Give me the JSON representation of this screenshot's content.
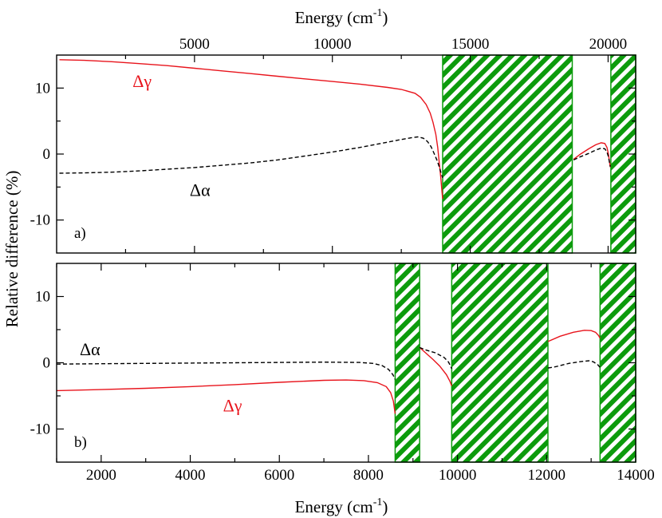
{
  "colors": {
    "gamma_line": "#e8141c",
    "alpha_line": "#000000",
    "band_fill": "#0c9b0c",
    "band_hatch": "#ffffff"
  },
  "figure": {
    "ylabel": "Relative difference (%)"
  },
  "chart_data": [
    {
      "type": "line",
      "panel_label": "a)",
      "xlabel": "Energy (cm",
      "xlabel_sup": "-1",
      "xlabel_close": ")",
      "xlabel_position": "top",
      "xlim": [
        0,
        21000
      ],
      "ylim": [
        -15,
        15
      ],
      "xticks": [
        5000,
        10000,
        15000,
        20000
      ],
      "xtick_labels": [
        "5000",
        "10000",
        "15000",
        "20000"
      ],
      "yticks": [
        -10,
        0,
        10
      ],
      "ytick_labels": [
        "-10",
        "0",
        "10"
      ],
      "shaded_regions": [
        [
          14000,
          18700
        ],
        [
          20100,
          21000
        ]
      ],
      "annotations": [
        {
          "text": "Δγ",
          "x": 3100,
          "y": 11,
          "color": "#e8141c"
        },
        {
          "text": "Δα",
          "x": 5200,
          "y": -5.5,
          "color": "#000000"
        }
      ],
      "series": [
        {
          "name": "Δγ",
          "style": "solid",
          "color": "#e8141c",
          "segments": [
            [
              [
                100,
                14.3
              ],
              [
                1000,
                14.2
              ],
              [
                2000,
                14.0
              ],
              [
                3000,
                13.7
              ],
              [
                4000,
                13.4
              ],
              [
                5000,
                13.0
              ],
              [
                6000,
                12.6
              ],
              [
                7000,
                12.2
              ],
              [
                8000,
                11.8
              ],
              [
                9000,
                11.4
              ],
              [
                10000,
                11.0
              ],
              [
                11000,
                10.6
              ],
              [
                12000,
                10.1
              ],
              [
                12500,
                9.8
              ],
              [
                13000,
                9.2
              ],
              [
                13200,
                8.6
              ],
              [
                13400,
                7.5
              ],
              [
                13550,
                6.2
              ],
              [
                13650,
                4.8
              ],
              [
                13750,
                3.0
              ],
              [
                13820,
                1.0
              ],
              [
                13880,
                -1.5
              ],
              [
                13930,
                -3.5
              ],
              [
                13970,
                -5.5
              ],
              [
                14000,
                -6.8
              ]
            ],
            [
              [
                18750,
                -0.8
              ],
              [
                19000,
                0.0
              ],
              [
                19300,
                0.8
              ],
              [
                19550,
                1.4
              ],
              [
                19750,
                1.7
              ],
              [
                19880,
                1.6
              ],
              [
                19960,
                1.0
              ],
              [
                20010,
                0.0
              ],
              [
                20050,
                -1.2
              ],
              [
                20080,
                -2.0
              ]
            ]
          ]
        },
        {
          "name": "Δα",
          "style": "dashed",
          "color": "#000000",
          "segments": [
            [
              [
                100,
                -2.9
              ],
              [
                1000,
                -2.85
              ],
              [
                2000,
                -2.75
              ],
              [
                3000,
                -2.55
              ],
              [
                4000,
                -2.3
              ],
              [
                5000,
                -2.05
              ],
              [
                6000,
                -1.7
              ],
              [
                7000,
                -1.35
              ],
              [
                8000,
                -0.9
              ],
              [
                9000,
                -0.3
              ],
              [
                10000,
                0.3
              ],
              [
                11000,
                1.0
              ],
              [
                12000,
                1.8
              ],
              [
                12500,
                2.2
              ],
              [
                12900,
                2.5
              ],
              [
                13100,
                2.6
              ],
              [
                13300,
                2.4
              ],
              [
                13450,
                1.9
              ],
              [
                13580,
                1.1
              ],
              [
                13700,
                0.0
              ],
              [
                13800,
                -1.0
              ],
              [
                13880,
                -2.0
              ],
              [
                13950,
                -3.0
              ],
              [
                14000,
                -3.6
              ]
            ],
            [
              [
                18750,
                -0.9
              ],
              [
                19000,
                -0.4
              ],
              [
                19300,
                0.1
              ],
              [
                19550,
                0.6
              ],
              [
                19750,
                0.9
              ],
              [
                19880,
                0.8
              ],
              [
                19960,
                0.3
              ],
              [
                20010,
                -0.4
              ],
              [
                20050,
                -1.3
              ],
              [
                20080,
                -1.9
              ]
            ]
          ]
        }
      ]
    },
    {
      "type": "line",
      "panel_label": "b)",
      "xlabel": "Energy (cm",
      "xlabel_sup": "-1",
      "xlabel_close": ")",
      "xlabel_position": "bottom",
      "xlim": [
        1000,
        14000
      ],
      "ylim": [
        -15,
        15
      ],
      "xticks": [
        2000,
        4000,
        6000,
        8000,
        10000,
        12000,
        14000
      ],
      "xtick_labels": [
        "2000",
        "4000",
        "6000",
        "8000",
        "10000",
        "12000",
        "14000"
      ],
      "yticks": [
        -10,
        0,
        10
      ],
      "ytick_labels": [
        "-10",
        "0",
        "10"
      ],
      "shaded_regions": [
        [
          8600,
          9150
        ],
        [
          9870,
          12030
        ],
        [
          13200,
          14000
        ]
      ],
      "annotations": [
        {
          "text": "Δα",
          "x": 1750,
          "y": 2.0,
          "color": "#000000"
        },
        {
          "text": "Δγ",
          "x": 4950,
          "y": -6.5,
          "color": "#e8141c"
        }
      ],
      "series": [
        {
          "name": "Δγ",
          "style": "solid",
          "color": "#e8141c",
          "segments": [
            [
              [
                1000,
                -4.2
              ],
              [
                2000,
                -4.05
              ],
              [
                3000,
                -3.85
              ],
              [
                4000,
                -3.6
              ],
              [
                5000,
                -3.3
              ],
              [
                6000,
                -2.95
              ],
              [
                7000,
                -2.65
              ],
              [
                7500,
                -2.6
              ],
              [
                7900,
                -2.7
              ],
              [
                8200,
                -3.0
              ],
              [
                8400,
                -3.6
              ],
              [
                8500,
                -4.5
              ],
              [
                8560,
                -5.8
              ],
              [
                8600,
                -7.7
              ]
            ],
            [
              [
                9150,
                2.3
              ],
              [
                9300,
                1.4
              ],
              [
                9450,
                0.5
              ],
              [
                9600,
                -0.5
              ],
              [
                9750,
                -1.8
              ],
              [
                9830,
                -2.8
              ],
              [
                9870,
                -3.5
              ]
            ],
            [
              [
                12030,
                3.2
              ],
              [
                12300,
                4.0
              ],
              [
                12600,
                4.6
              ],
              [
                12850,
                4.9
              ],
              [
                13000,
                4.85
              ],
              [
                13100,
                4.6
              ],
              [
                13170,
                4.1
              ],
              [
                13200,
                3.7
              ]
            ]
          ]
        },
        {
          "name": "Δα",
          "style": "dashed",
          "color": "#000000",
          "segments": [
            [
              [
                1000,
                -0.2
              ],
              [
                2000,
                -0.15
              ],
              [
                3000,
                -0.1
              ],
              [
                4000,
                -0.05
              ],
              [
                5000,
                0.0
              ],
              [
                6000,
                0.05
              ],
              [
                7000,
                0.1
              ],
              [
                7800,
                0.05
              ],
              [
                8100,
                -0.1
              ],
              [
                8300,
                -0.4
              ],
              [
                8450,
                -1.0
              ],
              [
                8550,
                -1.8
              ],
              [
                8600,
                -2.5
              ]
            ],
            [
              [
                9150,
                2.3
              ],
              [
                9300,
                1.9
              ],
              [
                9500,
                1.5
              ],
              [
                9700,
                0.8
              ],
              [
                9800,
                0.1
              ],
              [
                9870,
                -0.9
              ]
            ],
            [
              [
                12030,
                -0.8
              ],
              [
                12200,
                -0.6
              ],
              [
                12500,
                -0.1
              ],
              [
                12800,
                0.2
              ],
              [
                12950,
                0.3
              ],
              [
                13050,
                0.15
              ],
              [
                13150,
                -0.3
              ],
              [
                13200,
                -0.7
              ]
            ]
          ]
        }
      ]
    }
  ]
}
